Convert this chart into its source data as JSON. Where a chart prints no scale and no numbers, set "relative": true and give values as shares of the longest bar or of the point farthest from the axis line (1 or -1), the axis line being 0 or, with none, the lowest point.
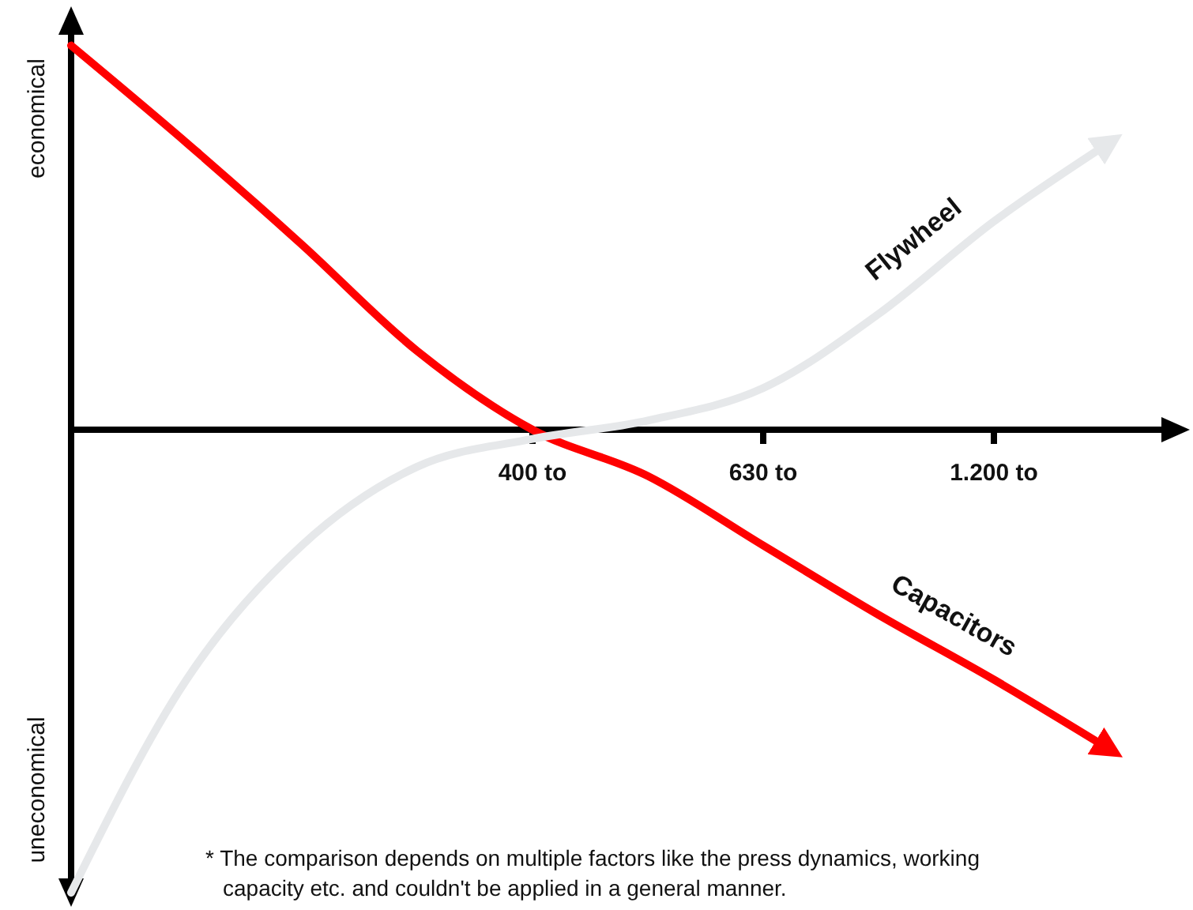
{
  "chart_data": {
    "type": "line",
    "relative": true,
    "marker": "none",
    "line_style": "solid",
    "categories": [
      null,
      null,
      null,
      null,
      "400 to",
      null,
      "630 to",
      null,
      "1.200 to",
      null
    ],
    "series": [
      {
        "name": "Capacitors",
        "color": "#ff0000",
        "values": [
          0.83,
          0.62,
          0.4,
          0.17,
          0,
          -0.1,
          -0.25,
          -0.4,
          -0.54,
          -0.69
        ]
      },
      {
        "name": "Flywheel",
        "color": "#e6e8ea",
        "values": [
          -1,
          -0.54,
          -0.25,
          -0.08,
          -0.02,
          0.02,
          0.09,
          0.25,
          0.45,
          0.62
        ]
      }
    ],
    "annotations": [
      "economical",
      "uneconomical",
      "* The comparison depends on multiple factors like the press dynamics, working capacity etc.  and couldn't be applied in a general manner."
    ]
  }
}
